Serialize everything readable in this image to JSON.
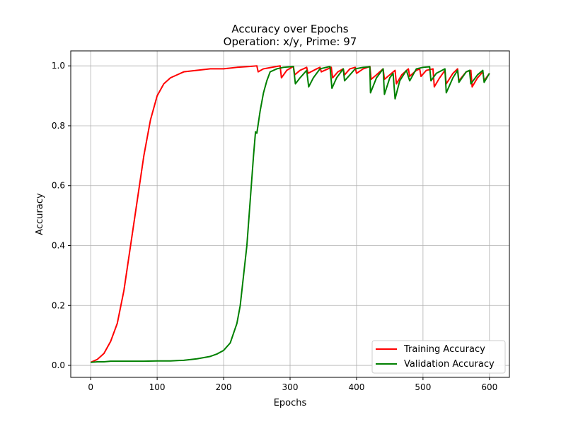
{
  "chart_data": {
    "type": "line",
    "title": "Accuracy over Epochs",
    "subtitle": "Operation: x/y, Prime: 97",
    "xlabel": "Epochs",
    "ylabel": "Accuracy",
    "xlim": [
      -30,
      630
    ],
    "ylim": [
      -0.04,
      1.05
    ],
    "xticks": [
      0,
      100,
      200,
      300,
      400,
      500,
      600
    ],
    "yticks": [
      0.0,
      0.2,
      0.4,
      0.6,
      0.8,
      1.0
    ],
    "xtick_labels": [
      "0",
      "100",
      "200",
      "300",
      "400",
      "500",
      "600"
    ],
    "ytick_labels": [
      "0.0",
      "0.2",
      "0.4",
      "0.6",
      "0.8",
      "1.0"
    ],
    "grid": true,
    "legend_position": "lower-right",
    "series": [
      {
        "name": "Training Accuracy",
        "color": "#ff0000",
        "points": [
          [
            0,
            0.01
          ],
          [
            10,
            0.02
          ],
          [
            20,
            0.04
          ],
          [
            30,
            0.08
          ],
          [
            40,
            0.14
          ],
          [
            50,
            0.25
          ],
          [
            60,
            0.4
          ],
          [
            70,
            0.55
          ],
          [
            80,
            0.7
          ],
          [
            90,
            0.82
          ],
          [
            100,
            0.9
          ],
          [
            110,
            0.94
          ],
          [
            120,
            0.96
          ],
          [
            140,
            0.98
          ],
          [
            160,
            0.985
          ],
          [
            180,
            0.99
          ],
          [
            200,
            0.99
          ],
          [
            220,
            0.995
          ],
          [
            240,
            0.998
          ],
          [
            250,
            1.0
          ],
          [
            252,
            0.98
          ],
          [
            260,
            0.99
          ],
          [
            280,
            0.998
          ],
          [
            285,
            1.0
          ],
          [
            287,
            0.96
          ],
          [
            295,
            0.985
          ],
          [
            305,
            0.998
          ],
          [
            307,
            0.97
          ],
          [
            315,
            0.985
          ],
          [
            325,
            0.995
          ],
          [
            327,
            0.975
          ],
          [
            340,
            0.99
          ],
          [
            345,
            0.995
          ],
          [
            347,
            0.98
          ],
          [
            362,
            0.995
          ],
          [
            364,
            0.96
          ],
          [
            372,
            0.98
          ],
          [
            380,
            0.99
          ],
          [
            382,
            0.97
          ],
          [
            390,
            0.99
          ],
          [
            398,
            0.995
          ],
          [
            400,
            0.975
          ],
          [
            410,
            0.99
          ],
          [
            420,
            0.998
          ],
          [
            422,
            0.955
          ],
          [
            430,
            0.97
          ],
          [
            440,
            0.99
          ],
          [
            442,
            0.955
          ],
          [
            450,
            0.97
          ],
          [
            458,
            0.985
          ],
          [
            460,
            0.94
          ],
          [
            468,
            0.97
          ],
          [
            478,
            0.99
          ],
          [
            480,
            0.965
          ],
          [
            490,
            0.985
          ],
          [
            495,
            0.99
          ],
          [
            497,
            0.965
          ],
          [
            505,
            0.985
          ],
          [
            515,
            0.99
          ],
          [
            517,
            0.93
          ],
          [
            525,
            0.96
          ],
          [
            533,
            0.985
          ],
          [
            535,
            0.94
          ],
          [
            545,
            0.975
          ],
          [
            552,
            0.99
          ],
          [
            554,
            0.95
          ],
          [
            565,
            0.98
          ],
          [
            572,
            0.985
          ],
          [
            574,
            0.93
          ],
          [
            582,
            0.96
          ],
          [
            590,
            0.98
          ],
          [
            592,
            0.95
          ],
          [
            600,
            0.975
          ]
        ]
      },
      {
        "name": "Validation Accuracy",
        "color": "#008000",
        "points": [
          [
            0,
            0.01
          ],
          [
            10,
            0.012
          ],
          [
            20,
            0.012
          ],
          [
            30,
            0.014
          ],
          [
            50,
            0.014
          ],
          [
            80,
            0.014
          ],
          [
            100,
            0.015
          ],
          [
            120,
            0.015
          ],
          [
            140,
            0.017
          ],
          [
            160,
            0.022
          ],
          [
            180,
            0.03
          ],
          [
            190,
            0.038
          ],
          [
            200,
            0.05
          ],
          [
            210,
            0.075
          ],
          [
            220,
            0.14
          ],
          [
            225,
            0.2
          ],
          [
            230,
            0.3
          ],
          [
            235,
            0.4
          ],
          [
            240,
            0.55
          ],
          [
            245,
            0.7
          ],
          [
            248,
            0.78
          ],
          [
            250,
            0.775
          ],
          [
            255,
            0.85
          ],
          [
            260,
            0.91
          ],
          [
            265,
            0.95
          ],
          [
            270,
            0.98
          ],
          [
            280,
            0.99
          ],
          [
            290,
            0.995
          ],
          [
            300,
            0.997
          ],
          [
            305,
            0.998
          ],
          [
            308,
            0.94
          ],
          [
            315,
            0.96
          ],
          [
            325,
            0.985
          ],
          [
            328,
            0.93
          ],
          [
            335,
            0.96
          ],
          [
            345,
            0.99
          ],
          [
            360,
            0.998
          ],
          [
            363,
            0.925
          ],
          [
            370,
            0.96
          ],
          [
            380,
            0.99
          ],
          [
            382,
            0.95
          ],
          [
            390,
            0.97
          ],
          [
            398,
            0.99
          ],
          [
            410,
            0.995
          ],
          [
            420,
            0.997
          ],
          [
            421,
            0.91
          ],
          [
            430,
            0.96
          ],
          [
            440,
            0.99
          ],
          [
            442,
            0.905
          ],
          [
            450,
            0.96
          ],
          [
            455,
            0.975
          ],
          [
            458,
            0.89
          ],
          [
            465,
            0.95
          ],
          [
            475,
            0.985
          ],
          [
            480,
            0.95
          ],
          [
            490,
            0.99
          ],
          [
            500,
            0.995
          ],
          [
            510,
            0.997
          ],
          [
            512,
            0.95
          ],
          [
            520,
            0.975
          ],
          [
            533,
            0.99
          ],
          [
            535,
            0.91
          ],
          [
            545,
            0.96
          ],
          [
            552,
            0.985
          ],
          [
            554,
            0.945
          ],
          [
            565,
            0.98
          ],
          [
            570,
            0.985
          ],
          [
            572,
            0.94
          ],
          [
            582,
            0.97
          ],
          [
            590,
            0.985
          ],
          [
            592,
            0.945
          ],
          [
            600,
            0.975
          ]
        ]
      }
    ]
  }
}
